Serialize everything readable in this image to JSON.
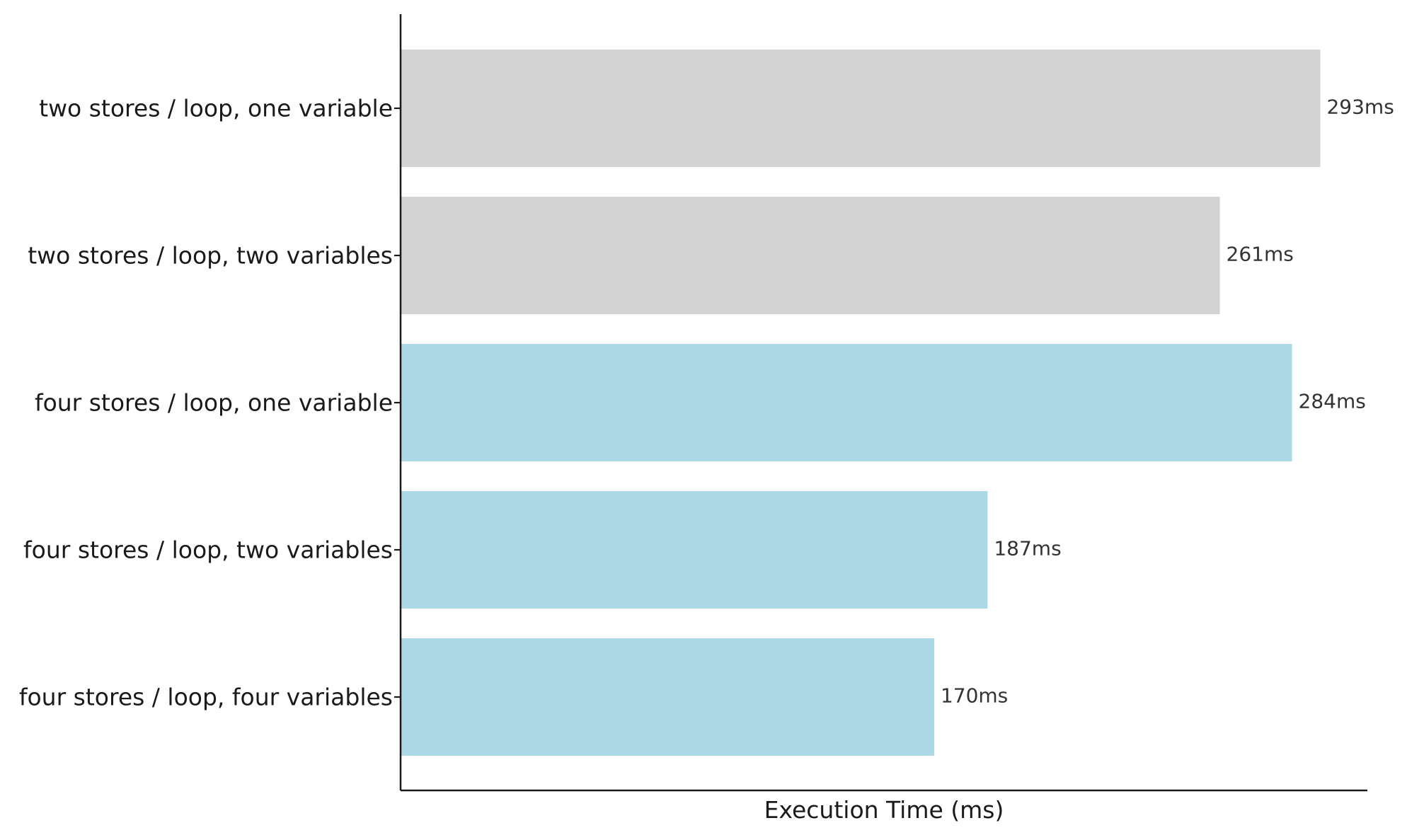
{
  "chart_data": {
    "type": "bar",
    "orientation": "horizontal",
    "title": "",
    "xlabel": "Execution Time (ms)",
    "ylabel": "",
    "xlim": [
      0,
      308
    ],
    "grid": false,
    "legend": "none",
    "value_unit_suffix": "ms",
    "categories": [
      "two stores / loop, one variable",
      "two stores / loop, two variables",
      "four stores / loop, one variable",
      "four stores / loop, two variables",
      "four stores / loop, four variables"
    ],
    "values": [
      293,
      261,
      284,
      187,
      170
    ],
    "value_labels": [
      "293ms",
      "261ms",
      "284ms",
      "187ms",
      "170ms"
    ],
    "bar_colors": [
      "#d3d3d3",
      "#d3d3d3",
      "#add8e6",
      "#add8e6",
      "#add8e6"
    ]
  },
  "colors": {
    "two_stores_group": "#d3d3d3",
    "four_stores_group": "#add8e6",
    "axis": "#1a1a1a",
    "background": "#ffffff"
  }
}
